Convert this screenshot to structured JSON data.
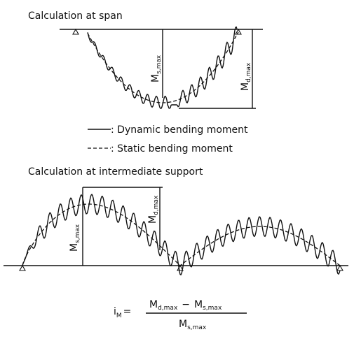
{
  "top": {
    "title": "Calculation at span",
    "static_label": {
      "base": "M",
      "sub": "s,max"
    },
    "dynamic_label": {
      "base": "M",
      "sub": "d,max"
    }
  },
  "legend": {
    "dynamic": ": Dynamic bending moment",
    "static": ": Static bending moment"
  },
  "bottom": {
    "title": "Calculation at intermediate support",
    "static_label": {
      "base": "M",
      "sub": "s,max"
    },
    "dynamic_label": {
      "base": "M",
      "sub": "d,max"
    }
  },
  "formula": {
    "lhs": {
      "base": "i",
      "sub": "M"
    },
    "equals": "=",
    "numerator": [
      {
        "base": "M",
        "sub": "d,max"
      },
      "−",
      {
        "base": "M",
        "sub": "s,max"
      }
    ],
    "denominator": {
      "base": "M",
      "sub": "s,max"
    }
  }
}
